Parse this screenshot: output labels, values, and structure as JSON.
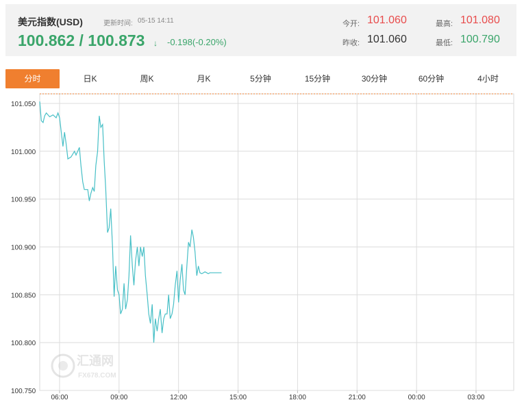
{
  "header": {
    "title": "美元指数(USD)",
    "updated_label": "更新时间:",
    "updated_time": "05-15 14:11",
    "price": "100.862 / 100.873",
    "arrow": "↓",
    "change": "-0.198(-0.20%)",
    "stats": {
      "open_label": "今开:",
      "open_value": "101.060",
      "high_label": "最高:",
      "high_value": "101.080",
      "prev_label": "昨收:",
      "prev_value": "101.060",
      "low_label": "最低:",
      "low_value": "100.790"
    }
  },
  "colors": {
    "up": "#e84c4c",
    "down": "#3aa56a",
    "neutral": "#333333",
    "accent": "#f07f2f",
    "line": "#46bfc6",
    "ref_line": "#f07f2f"
  },
  "tabs": [
    "分时",
    "日K",
    "周K",
    "月K",
    "5分钟",
    "15分钟",
    "30分钟",
    "60分钟",
    "4小时"
  ],
  "active_tab": 0,
  "watermark": "汇通网 FX678.COM",
  "chart_data": {
    "type": "line",
    "title": "",
    "xlabel": "",
    "ylabel": "",
    "x_ticks": [
      "06:00",
      "09:00",
      "12:00",
      "15:00",
      "18:00",
      "21:00",
      "00:00",
      "03:00"
    ],
    "y_ticks": [
      "101.050",
      "101.000",
      "100.950",
      "100.900",
      "100.850",
      "100.800",
      "100.750"
    ],
    "ylim": [
      100.75,
      101.06
    ],
    "x_range_hours": [
      5.0,
      28.9
    ],
    "ref_value": 101.06,
    "grid": true,
    "series": [
      {
        "x": [
          5.0,
          5.08,
          5.17,
          5.25,
          5.33,
          5.5,
          5.67,
          5.83,
          5.92,
          6.0,
          6.17,
          6.25,
          6.33,
          6.42,
          6.58,
          6.75,
          6.83,
          7.0,
          7.08,
          7.17,
          7.25,
          7.42,
          7.5,
          7.58,
          7.67,
          7.75,
          7.83,
          7.92,
          8.0,
          8.08,
          8.17,
          8.25,
          8.33,
          8.42,
          8.5,
          8.58,
          8.67,
          8.75,
          8.83,
          8.92,
          9.0,
          9.08,
          9.17,
          9.25,
          9.33,
          9.42,
          9.5,
          9.58,
          9.67,
          9.75,
          9.83,
          9.92,
          10.0,
          10.08,
          10.17,
          10.25,
          10.33,
          10.42,
          10.5,
          10.58,
          10.67,
          10.75,
          10.83,
          10.92,
          11.0,
          11.08,
          11.17,
          11.25,
          11.33,
          11.42,
          11.5,
          11.58,
          11.67,
          11.75,
          11.83,
          11.92,
          12.0,
          12.08,
          12.17,
          12.25,
          12.33,
          12.42,
          12.5,
          12.58,
          12.67,
          12.75,
          12.83,
          12.92,
          13.0,
          13.08,
          13.17,
          13.25,
          13.33,
          13.42,
          13.5,
          13.58,
          13.67,
          13.75,
          13.83,
          13.92,
          14.0,
          14.08,
          14.17
        ],
        "y": [
          101.052,
          101.032,
          101.03,
          101.037,
          101.04,
          101.036,
          101.038,
          101.035,
          101.04,
          101.035,
          101.005,
          101.02,
          101.008,
          100.992,
          100.994,
          101.0,
          100.996,
          101.004,
          100.985,
          100.968,
          100.96,
          100.96,
          100.948,
          100.956,
          100.962,
          100.958,
          100.985,
          101.0,
          101.037,
          101.025,
          101.028,
          100.99,
          100.96,
          100.915,
          100.92,
          100.94,
          100.9,
          100.848,
          100.88,
          100.855,
          100.85,
          100.83,
          100.835,
          100.862,
          100.835,
          100.845,
          100.87,
          100.912,
          100.88,
          100.86,
          100.885,
          100.9,
          100.88,
          100.9,
          100.89,
          100.9,
          100.87,
          100.85,
          100.83,
          100.82,
          100.84,
          100.8,
          100.825,
          100.812,
          100.825,
          100.835,
          100.81,
          100.825,
          100.83,
          100.83,
          100.85,
          100.825,
          100.83,
          100.84,
          100.86,
          100.875,
          100.842,
          100.865,
          100.882,
          100.855,
          100.85,
          100.88,
          100.905,
          100.9,
          100.918,
          100.91,
          100.895,
          100.87,
          100.88,
          100.873,
          100.872,
          100.873,
          100.874,
          100.873,
          100.872,
          100.873,
          100.873,
          100.873,
          100.873,
          100.873,
          100.873,
          100.873,
          100.873
        ]
      }
    ]
  }
}
